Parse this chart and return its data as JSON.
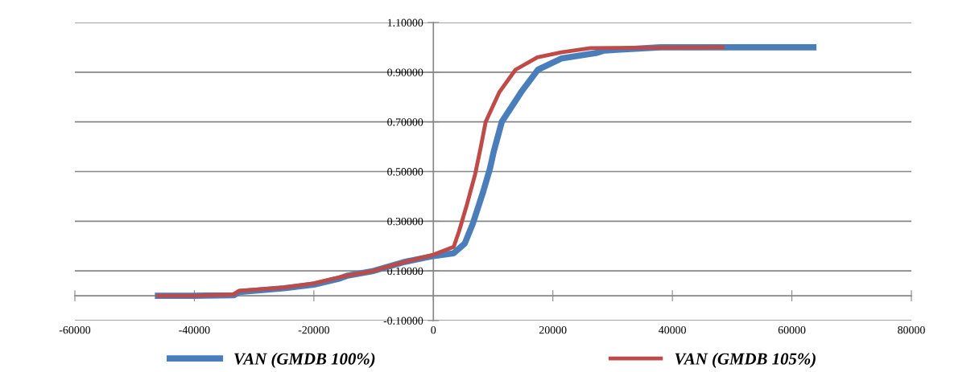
{
  "chart_data": {
    "type": "line",
    "series": [
      {
        "name": "VAN (GMDB 100%)",
        "color": "#4a7ebb",
        "x": [
          -46100,
          -40000,
          -33400,
          -32500,
          -25000,
          -20000,
          -15900,
          -14500,
          -10000,
          -5000,
          0,
          3400,
          5250,
          6600,
          8350,
          9450,
          10100,
          11450,
          14700,
          17500,
          21400,
          27200,
          28600,
          38000,
          63600
        ],
        "values": [
          0,
          0,
          0.002,
          0.015,
          0.03,
          0.045,
          0.068,
          0.08,
          0.1,
          0.135,
          0.16,
          0.171,
          0.21,
          0.29,
          0.42,
          0.51,
          0.58,
          0.7,
          0.82,
          0.91,
          0.955,
          0.977,
          0.987,
          1.0,
          1.0
        ]
      },
      {
        "name": "VAN (GMDB 105%)",
        "color": "#be4b48",
        "x": [
          -46100,
          -40000,
          -33400,
          -32500,
          -25000,
          -20000,
          -15000,
          -10000,
          -5000,
          0,
          3400,
          4300,
          5650,
          7000,
          7950,
          8750,
          11050,
          13750,
          17400,
          21400,
          26300,
          48400
        ],
        "values": [
          0,
          0,
          0.005,
          0.02,
          0.033,
          0.05,
          0.078,
          0.1,
          0.135,
          0.165,
          0.197,
          0.26,
          0.37,
          0.49,
          0.6,
          0.7,
          0.82,
          0.91,
          0.96,
          0.98,
          0.997,
          1.0
        ]
      }
    ],
    "xlim": [
      -60000,
      80000
    ],
    "xticks": [
      -60000,
      -40000,
      -20000,
      0,
      20000,
      40000,
      60000,
      80000
    ],
    "ylim": [
      -0.1,
      1.1
    ],
    "yticks": [
      {
        "value": -0.1,
        "label": "-0.10000"
      },
      {
        "value": 0.1,
        "label": "0.10000"
      },
      {
        "value": 0.3,
        "label": "0.30000"
      },
      {
        "value": 0.5,
        "label": "0.50000"
      },
      {
        "value": 0.7,
        "label": "0.70000"
      },
      {
        "value": 0.9,
        "label": "0.90000"
      },
      {
        "value": 1.1,
        "label": "1.10000"
      }
    ],
    "grid": "y",
    "legend": "bottom",
    "marker": "none",
    "line_style": "solid"
  }
}
